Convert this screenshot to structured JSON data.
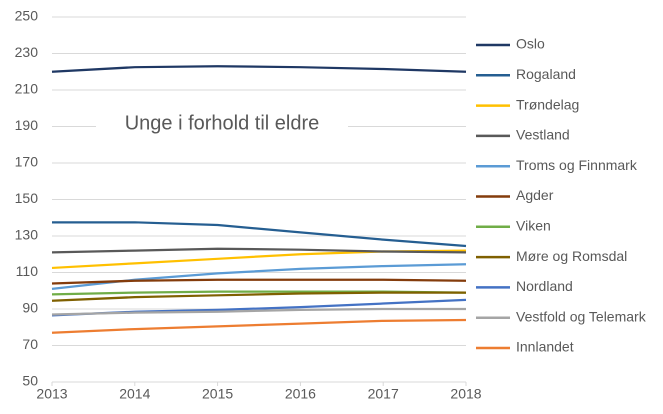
{
  "chart_data": {
    "type": "line",
    "title": "Unge i forhold til eldre",
    "x": [
      2013,
      2014,
      2015,
      2016,
      2017,
      2018
    ],
    "xlim": [
      2013,
      2018
    ],
    "xticks": [
      2013,
      2014,
      2015,
      2016,
      2017,
      2018
    ],
    "ylim": [
      50,
      250
    ],
    "yticks": [
      50,
      70,
      90,
      110,
      130,
      150,
      170,
      190,
      210,
      230,
      250
    ],
    "grid": true,
    "legend": "right",
    "series": [
      {
        "name": "Oslo",
        "color": "#1f3864",
        "values": [
          220,
          222.5,
          223,
          222.5,
          221.5,
          220
        ]
      },
      {
        "name": "Rogaland",
        "color": "#255e91",
        "values": [
          137.5,
          137.5,
          136,
          132,
          128,
          124.5
        ]
      },
      {
        "name": "Trøndelag",
        "color": "#ffc000",
        "values": [
          112.5,
          115,
          117.5,
          120,
          121.5,
          122
        ]
      },
      {
        "name": "Vestland",
        "color": "#595959",
        "values": [
          121,
          122,
          123,
          122.5,
          121.5,
          121
        ]
      },
      {
        "name": "Troms og Finnmark",
        "color": "#5b9bd5",
        "values": [
          101,
          106,
          109.5,
          112,
          113.5,
          114.5
        ]
      },
      {
        "name": "Agder",
        "color": "#843c0c",
        "values": [
          104,
          105.5,
          106,
          106,
          106,
          105.5
        ]
      },
      {
        "name": "Viken",
        "color": "#70ad47",
        "values": [
          98,
          99,
          99.5,
          99.5,
          99.5,
          99
        ]
      },
      {
        "name": "Møre og Romsdal",
        "color": "#7f6000",
        "values": [
          94.5,
          96.5,
          97.5,
          98.5,
          99,
          99
        ]
      },
      {
        "name": "Nordland",
        "color": "#4472c4",
        "values": [
          86.5,
          88.5,
          89.5,
          91,
          93,
          95
        ]
      },
      {
        "name": "Vestfold og Telemark",
        "color": "#a5a5a5",
        "values": [
          87,
          88,
          88.5,
          89.5,
          90,
          90
        ]
      },
      {
        "name": "Innlandet",
        "color": "#ed7d31",
        "values": [
          77,
          79,
          80.5,
          82,
          83.5,
          84
        ]
      }
    ]
  }
}
